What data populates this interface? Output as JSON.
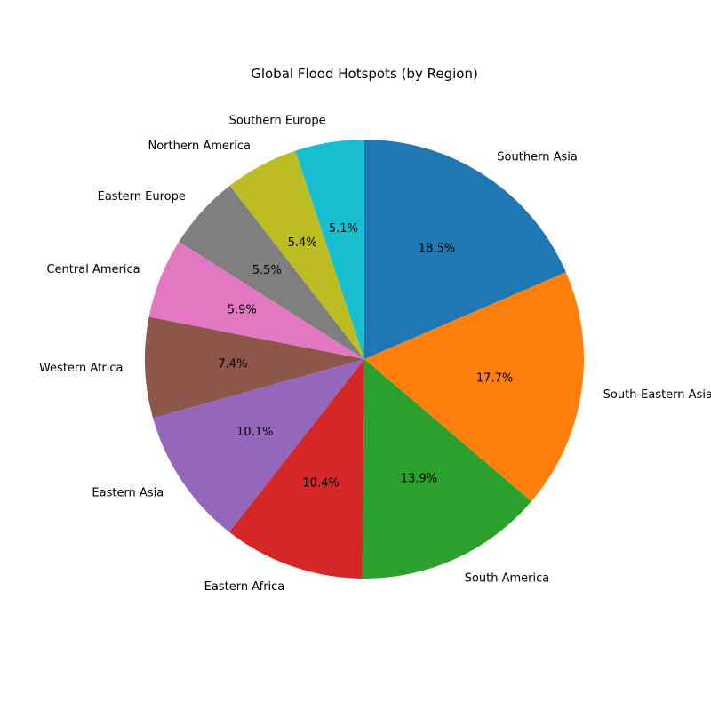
{
  "chart_data": {
    "type": "pie",
    "title": "Global Flood Hotspots (by Region)",
    "start_angle_deg": 90,
    "direction": "clockwise",
    "slices": [
      {
        "label": "Southern Asia",
        "value": 18.5,
        "pct_text": "18.5%",
        "color": "#1f77b4"
      },
      {
        "label": "South-Eastern Asia",
        "value": 17.7,
        "pct_text": "17.7%",
        "color": "#ff7f0e"
      },
      {
        "label": "South America",
        "value": 13.9,
        "pct_text": "13.9%",
        "color": "#2ca02c"
      },
      {
        "label": "Eastern Africa",
        "value": 10.4,
        "pct_text": "10.4%",
        "color": "#d62728"
      },
      {
        "label": "Eastern Asia",
        "value": 10.1,
        "pct_text": "10.1%",
        "color": "#9467bd"
      },
      {
        "label": "Western Africa",
        "value": 7.4,
        "pct_text": "7.4%",
        "color": "#8c564b"
      },
      {
        "label": "Central America",
        "value": 5.9,
        "pct_text": "5.9%",
        "color": "#e377c2"
      },
      {
        "label": "Eastern Europe",
        "value": 5.5,
        "pct_text": "5.5%",
        "color": "#7f7f7f"
      },
      {
        "label": "Northern America",
        "value": 5.4,
        "pct_text": "5.4%",
        "color": "#bcbd22"
      },
      {
        "label": "Southern Europe",
        "value": 5.1,
        "pct_text": "5.1%",
        "color": "#17becf"
      }
    ]
  }
}
